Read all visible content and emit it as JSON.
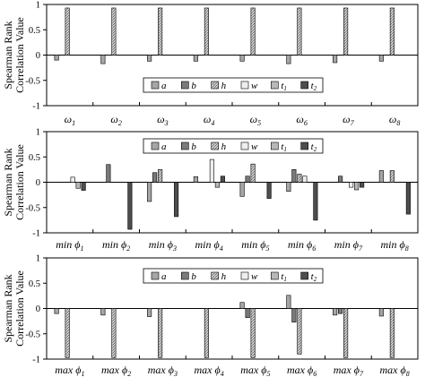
{
  "ylabel_line1": "Spearman Rank",
  "ylabel_line2": "Correlation Value",
  "legend_keys": [
    "a",
    "b",
    "h",
    "w",
    "t",
    "t"
  ],
  "legend_subs": [
    "",
    "",
    "",
    "",
    "1",
    "2"
  ],
  "series_colors": [
    "#a6a6a6",
    "#7a7a7a",
    "#c2c2c2",
    "#eeeeee",
    "#b8b8b8",
    "#4d4d4d"
  ],
  "chart_data": [
    {
      "type": "bar",
      "yticks": [
        1,
        0.5,
        0,
        -0.5,
        -1
      ],
      "ylim": [
        -1,
        1
      ],
      "categories": [
        "ω1",
        "ω2",
        "ω3",
        "ω4",
        "ω5",
        "ω6",
        "ω7",
        "ω8"
      ],
      "cat_prefix": [
        "ω",
        "ω",
        "ω",
        "ω",
        "ω",
        "ω",
        "ω",
        "ω"
      ],
      "cat_sub": [
        "1",
        "2",
        "3",
        "4",
        "5",
        "6",
        "7",
        "8"
      ],
      "legend_position": "bottom-center",
      "series": [
        {
          "values": [
            -0.1,
            -0.17,
            -0.12,
            -0.12,
            -0.12,
            -0.17,
            -0.15,
            -0.12
          ]
        },
        {
          "values": [
            0.0,
            0.0,
            0.0,
            0.0,
            0.0,
            0.0,
            0.0,
            0.0
          ]
        },
        {
          "values": [
            0.93,
            0.93,
            0.93,
            0.93,
            0.93,
            0.93,
            0.93,
            0.93
          ]
        },
        {
          "values": [
            0.0,
            0.0,
            0.0,
            0.0,
            0.0,
            0.0,
            0.0,
            0.0
          ]
        },
        {
          "values": [
            0.0,
            0.0,
            0.0,
            0.0,
            0.0,
            0.0,
            0.0,
            0.0
          ]
        },
        {
          "values": [
            0.0,
            0.0,
            0.0,
            0.0,
            0.0,
            0.0,
            0.0,
            0.0
          ]
        }
      ]
    },
    {
      "type": "bar",
      "yticks": [
        1,
        0.5,
        0,
        -0.5,
        -1
      ],
      "ylim": [
        -1,
        1
      ],
      "categories": [
        "min ϕ1",
        "min ϕ2",
        "min ϕ3",
        "min ϕ4",
        "min ϕ5",
        "min ϕ6",
        "min ϕ7",
        "min ϕ8"
      ],
      "cat_prefix": [
        "min ϕ",
        "min ϕ",
        "min ϕ",
        "min ϕ",
        "min ϕ",
        "min ϕ",
        "min ϕ",
        "min ϕ"
      ],
      "cat_sub": [
        "1",
        "2",
        "3",
        "4",
        "5",
        "6",
        "7",
        "8"
      ],
      "legend_position": "top-center",
      "series": [
        {
          "values": [
            0.0,
            0.0,
            -0.38,
            0.11,
            -0.28,
            -0.18,
            0.0,
            0.23
          ]
        },
        {
          "values": [
            0.0,
            0.35,
            0.19,
            0.0,
            0.12,
            0.25,
            0.12,
            0.0
          ]
        },
        {
          "values": [
            0.0,
            0.0,
            0.25,
            0.0,
            0.36,
            0.16,
            0.0,
            0.23
          ]
        },
        {
          "values": [
            0.1,
            0.0,
            0.0,
            0.45,
            0.0,
            0.12,
            -0.1,
            0.0
          ]
        },
        {
          "values": [
            -0.12,
            0.0,
            0.0,
            -0.1,
            0.0,
            0.0,
            -0.15,
            0.0
          ]
        },
        {
          "values": [
            -0.16,
            -0.93,
            -0.68,
            0.12,
            -0.32,
            -0.75,
            -0.1,
            -0.63
          ]
        }
      ]
    },
    {
      "type": "bar",
      "yticks": [
        1,
        0.5,
        0,
        -0.5,
        -1
      ],
      "ylim": [
        -1,
        1
      ],
      "categories": [
        "max ϕ1",
        "max ϕ2",
        "max ϕ3",
        "max ϕ4",
        "max ϕ5",
        "max ϕ6",
        "max ϕ7",
        "max ϕ8"
      ],
      "cat_prefix": [
        "max ϕ",
        "max ϕ",
        "max ϕ",
        "max ϕ",
        "max ϕ",
        "max ϕ",
        "max ϕ",
        "max ϕ"
      ],
      "cat_sub": [
        "1",
        "2",
        "3",
        "4",
        "5",
        "6",
        "7",
        "8"
      ],
      "legend_position": "top-center",
      "series": [
        {
          "values": [
            -0.1,
            -0.13,
            -0.16,
            0.0,
            0.12,
            0.26,
            -0.13,
            -0.15
          ]
        },
        {
          "values": [
            0.0,
            0.0,
            0.0,
            0.0,
            -0.18,
            -0.27,
            -0.1,
            0.0
          ]
        },
        {
          "values": [
            -0.97,
            -0.97,
            -0.97,
            -0.97,
            -0.97,
            -0.9,
            -0.97,
            -0.97
          ]
        },
        {
          "values": [
            0.0,
            0.0,
            0.0,
            0.0,
            0.0,
            0.0,
            0.0,
            0.0
          ]
        },
        {
          "values": [
            0.0,
            0.0,
            0.0,
            0.0,
            0.0,
            0.0,
            0.0,
            0.0
          ]
        },
        {
          "values": [
            0.0,
            0.0,
            0.0,
            0.0,
            0.0,
            0.0,
            0.0,
            0.0
          ]
        }
      ]
    }
  ]
}
